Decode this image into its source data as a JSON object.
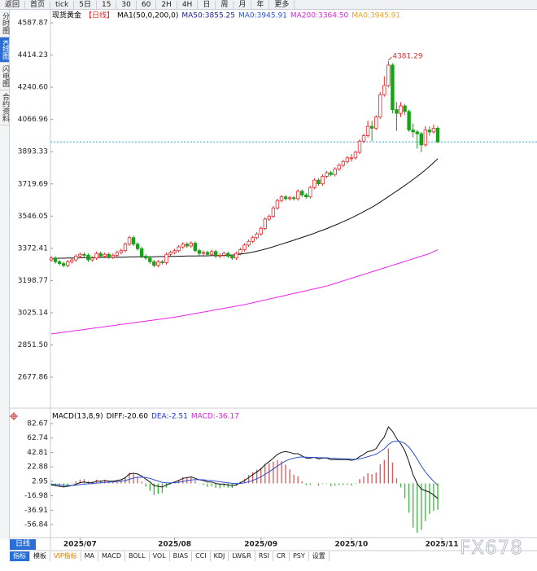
{
  "toolbar": [
    "返回",
    "首页",
    "tick",
    "5日",
    "15",
    "30",
    "60",
    "2H",
    "4H",
    "日",
    "周",
    "月",
    "年",
    "更多"
  ],
  "sidebar": [
    "分时图",
    "K线图",
    "闪电图",
    "合约资料"
  ],
  "period": "日线",
  "tabs": [
    "指标",
    "模板",
    "VIP指标",
    "MA",
    "MACD",
    "BOLL",
    "VOL",
    "BIAS",
    "CCI",
    "KDJ",
    "LW&R",
    "RSI",
    "CR",
    "PSY",
    "设置"
  ],
  "watermark": "FX678",
  "chart_data": [
    {
      "type": "candlestick",
      "title": "现货黄金",
      "subtitle": "【日线】",
      "legend": [
        {
          "text": "MA1(50,0,200,0)",
          "color": "#000000"
        },
        {
          "text": "MA50:3855.25",
          "color": "#1f1f8f"
        },
        {
          "text": "MA0:3945.91",
          "color": "#2a55d4"
        },
        {
          "text": "MA200:3364.50",
          "color": "#e020e0"
        },
        {
          "text": "MA0:3945.91",
          "color": "#f0a020"
        }
      ],
      "up_color": "#e8262a",
      "down_color": "#16a316",
      "last_line_color": "#2aa8e0",
      "xlim": [
        0,
        94
      ],
      "xticks": [
        {
          "value": 7,
          "label": "2025/07"
        },
        {
          "value": 30,
          "label": "2025/08"
        },
        {
          "value": 51,
          "label": "2025/09"
        },
        {
          "value": 73,
          "label": "2025/10"
        },
        {
          "value": 95,
          "label": "2025/11"
        }
      ],
      "ylim": [
        2515.6,
        4658.2
      ],
      "yticks": [
        4587.87,
        4414.23,
        {
          "value": 4240.6,
          "label": "4240.60"
        },
        4066.96,
        3893.33,
        3719.69,
        3546.05,
        3372.41,
        3198.77,
        3025.14,
        {
          "value": 2851.5,
          "label": "2851.50"
        },
        2677.86
      ],
      "open": [
        3310,
        3320,
        3300,
        3290,
        3280,
        3300,
        3310,
        3330,
        3340,
        3335,
        3310,
        3320,
        3345,
        3330,
        3340,
        3325,
        3335,
        3350,
        3360,
        3395,
        3430,
        3395,
        3370,
        3330,
        3320,
        3300,
        3280,
        3300,
        3295,
        3340,
        3350,
        3360,
        3380,
        3395,
        3385,
        3400,
        3360,
        3345,
        3350,
        3340,
        3355,
        3330,
        3335,
        3345,
        3330,
        3320,
        3345,
        3365,
        3390,
        3410,
        3430,
        3450,
        3480,
        3530,
        3545,
        3590,
        3630,
        3650,
        3640,
        3645,
        3640,
        3680,
        3660,
        3650,
        3700,
        3740,
        3720,
        3760,
        3780,
        3770,
        3800,
        3820,
        3840,
        3860,
        3860,
        3890,
        3950,
        3980,
        4030,
        4020,
        4080,
        4200,
        4250,
        4360,
        4120,
        4100,
        4140,
        4110,
        4010,
        4000,
        3990,
        3930,
        4010,
        4000,
        4020
      ],
      "high": [
        3330,
        3330,
        3310,
        3300,
        3310,
        3320,
        3340,
        3350,
        3350,
        3345,
        3330,
        3355,
        3355,
        3350,
        3350,
        3345,
        3360,
        3370,
        3405,
        3440,
        3440,
        3405,
        3380,
        3340,
        3330,
        3310,
        3310,
        3310,
        3350,
        3360,
        3370,
        3390,
        3405,
        3405,
        3410,
        3410,
        3370,
        3360,
        3360,
        3365,
        3365,
        3345,
        3355,
        3355,
        3340,
        3355,
        3375,
        3400,
        3420,
        3440,
        3460,
        3490,
        3540,
        3555,
        3600,
        3640,
        3660,
        3660,
        3655,
        3655,
        3690,
        3690,
        3670,
        3710,
        3750,
        3750,
        3770,
        3790,
        3790,
        3810,
        3830,
        3850,
        3870,
        3880,
        3900,
        3960,
        3990,
        4060,
        4060,
        4090,
        4215,
        4300,
        4381.29,
        4370,
        4160,
        4160,
        4150,
        4120,
        4045,
        4010,
        4000,
        4030,
        4030,
        4040,
        4030
      ],
      "low": [
        3300,
        3290,
        3280,
        3270,
        3270,
        3290,
        3300,
        3320,
        3325,
        3300,
        3300,
        3310,
        3320,
        3320,
        3315,
        3315,
        3325,
        3340,
        3350,
        3385,
        3385,
        3360,
        3320,
        3310,
        3290,
        3270,
        3270,
        3285,
        3285,
        3330,
        3340,
        3350,
        3370,
        3375,
        3375,
        3350,
        3335,
        3335,
        3330,
        3330,
        3320,
        3320,
        3325,
        3320,
        3310,
        3310,
        3335,
        3355,
        3380,
        3400,
        3420,
        3440,
        3470,
        3520,
        3535,
        3580,
        3620,
        3630,
        3630,
        3630,
        3630,
        3650,
        3640,
        3640,
        3690,
        3710,
        3710,
        3750,
        3760,
        3760,
        3790,
        3810,
        3830,
        3840,
        3850,
        3880,
        3940,
        3970,
        3950,
        4010,
        4070,
        4190,
        4240,
        4100,
        4005,
        4080,
        4090,
        4000,
        3970,
        3910,
        3890,
        3920,
        3980,
        3990,
        3940
      ],
      "close": [
        3320,
        3300,
        3290,
        3280,
        3300,
        3310,
        3330,
        3340,
        3335,
        3310,
        3320,
        3345,
        3330,
        3340,
        3325,
        3335,
        3350,
        3360,
        3395,
        3430,
        3395,
        3370,
        3330,
        3320,
        3300,
        3280,
        3300,
        3295,
        3340,
        3350,
        3360,
        3380,
        3395,
        3385,
        3400,
        3360,
        3345,
        3350,
        3340,
        3355,
        3330,
        3335,
        3345,
        3330,
        3320,
        3345,
        3365,
        3390,
        3410,
        3430,
        3450,
        3480,
        3530,
        3545,
        3590,
        3630,
        3650,
        3640,
        3645,
        3640,
        3680,
        3660,
        3650,
        3700,
        3740,
        3720,
        3760,
        3780,
        3770,
        3800,
        3820,
        3840,
        3860,
        3860,
        3890,
        3950,
        3980,
        4030,
        4020,
        4080,
        4200,
        4250,
        4360,
        4120,
        4100,
        4140,
        4110,
        4010,
        4000,
        3990,
        3930,
        4010,
        4000,
        4020,
        3945.91
      ],
      "series": [
        {
          "color": "#111111",
          "values": [
            3318,
            3318,
            3319,
            3319,
            3320,
            3320,
            3321,
            3321,
            3322,
            3322,
            3322,
            3323,
            3323,
            3323,
            3324,
            3324,
            3324,
            3325,
            3325,
            3326,
            3326,
            3327,
            3327,
            3327,
            3327,
            3327,
            3328,
            3328,
            3328,
            3329,
            3329,
            3330,
            3330,
            3331,
            3331,
            3331,
            3332,
            3332,
            3332,
            3333,
            3333,
            3333,
            3334,
            3335,
            3336,
            3338,
            3341,
            3344,
            3348,
            3352,
            3357,
            3362,
            3368,
            3374,
            3381,
            3388,
            3395,
            3402,
            3409,
            3416,
            3424,
            3431,
            3438,
            3446,
            3454,
            3462,
            3470,
            3479,
            3488,
            3497,
            3506,
            3516,
            3526,
            3536,
            3547,
            3558,
            3570,
            3582,
            3594,
            3607,
            3621,
            3636,
            3651,
            3666,
            3681,
            3696,
            3711,
            3727,
            3743,
            3760,
            3777,
            3795,
            3814,
            3834,
            3855.25
          ]
        },
        {
          "color": "#ee22ee",
          "values": [
            2911,
            2914,
            2917,
            2920,
            2923,
            2926,
            2929,
            2932,
            2935,
            2938,
            2941,
            2944,
            2947,
            2950,
            2953,
            2956,
            2959,
            2962,
            2965,
            2968,
            2971,
            2974,
            2977,
            2980,
            2983,
            2986,
            2989,
            2992,
            2995,
            2998,
            3001,
            3005,
            3009,
            3013,
            3017,
            3021,
            3025,
            3029,
            3033,
            3037,
            3041,
            3045,
            3049,
            3053,
            3057,
            3061,
            3065,
            3069,
            3074,
            3079,
            3084,
            3089,
            3094,
            3099,
            3104,
            3109,
            3114,
            3119,
            3124,
            3129,
            3134,
            3139,
            3144,
            3149,
            3154,
            3159,
            3164,
            3169,
            3176,
            3183,
            3190,
            3197,
            3204,
            3211,
            3218,
            3225,
            3232,
            3239,
            3246,
            3253,
            3260,
            3267,
            3274,
            3281,
            3288,
            3295,
            3302,
            3309,
            3316,
            3323,
            3330,
            3337,
            3344,
            3355,
            3364.5
          ]
        }
      ]
    },
    {
      "type": "macd",
      "title": "MACD(13,8,9)",
      "legend": [
        {
          "text": "DIFF:-20.60",
          "color": "#000000"
        },
        {
          "text": "DEA:-2.51",
          "color": "#2233cc"
        },
        {
          "text": "MACD:-36.17",
          "color": "#e020e0"
        }
      ],
      "xlim": [
        0,
        94
      ],
      "ylim": [
        -74.8,
        98.4
      ],
      "yticks": [
        82.67,
        62.74,
        42.81,
        22.88,
        2.95,
        -16.98,
        -36.91,
        -56.84
      ],
      "series": [
        {
          "color": "#111111",
          "values": [
            -2,
            -3,
            -4,
            -5,
            -4,
            -3,
            -1,
            1,
            2,
            1,
            1,
            3,
            3,
            4,
            3,
            3,
            4,
            5,
            8,
            13,
            14,
            13,
            10,
            6,
            2,
            -3,
            -4,
            -5,
            -2,
            0,
            2,
            4,
            7,
            8,
            9,
            7,
            5,
            4,
            2,
            2,
            0,
            -1,
            -1,
            -2,
            -3,
            -2,
            1,
            4,
            8,
            12,
            16,
            20,
            26,
            30,
            35,
            40,
            43,
            44,
            43,
            41,
            41,
            38,
            35,
            35,
            36,
            34,
            35,
            35,
            33,
            33,
            33,
            33,
            33,
            32,
            33,
            37,
            40,
            44,
            45,
            48,
            57,
            64,
            78,
            72,
            62,
            55,
            45,
            30,
            12,
            0,
            -8,
            -10,
            -12,
            -16,
            -20.6
          ]
        },
        {
          "color": "#2f4fd0",
          "values": [
            -1,
            -1.4,
            -1.9,
            -2.5,
            -2.8,
            -2.8,
            -2.4,
            -1.7,
            -1,
            -0.6,
            -0.3,
            0.4,
            0.9,
            1.5,
            1.8,
            2,
            2.4,
            2.9,
            3.9,
            5.7,
            7.4,
            8.5,
            8.8,
            8.2,
            7,
            5,
            3.2,
            1.6,
            0.9,
            0.7,
            1,
            1.6,
            2.7,
            3.8,
            4.8,
            5.2,
            5.2,
            5,
            4.4,
            3.9,
            3.1,
            2.3,
            1.6,
            0.9,
            0.1,
            -0.3,
            0,
            0.8,
            2.2,
            4.2,
            6.5,
            9.2,
            12.6,
            16.1,
            19.9,
            23.9,
            27.7,
            31,
            33.4,
            34.9,
            36.1,
            36.5,
            36.2,
            36,
            36,
            35.6,
            35.5,
            35.4,
            34.9,
            34.5,
            34.2,
            34,
            33.8,
            33.4,
            33.3,
            34,
            35.2,
            37,
            38.6,
            40.5,
            43.8,
            47.8,
            53.9,
            57.5,
            58.4,
            57.7,
            55.2,
            50.2,
            42.5,
            34,
            24,
            16,
            9,
            3,
            -2.51
          ]
        }
      ],
      "histogram": {
        "up_color": "#e05555",
        "down_color": "#33bb33",
        "values": [
          -2,
          -3.2,
          -4.2,
          -5,
          -2.4,
          -0.4,
          2.8,
          5.4,
          6,
          3.2,
          2.6,
          5.2,
          4.2,
          5,
          2.4,
          2,
          3.2,
          4.2,
          8.2,
          14.6,
          13.2,
          9,
          2.4,
          -4.4,
          -10,
          -16,
          -14.4,
          -13.2,
          -5.8,
          -1.4,
          2,
          4.8,
          8.6,
          8.4,
          8.4,
          3.6,
          -0.4,
          -2,
          -4.8,
          -3.8,
          -6.2,
          -6.6,
          -5.2,
          -5.8,
          -6.2,
          -3.4,
          2,
          6.4,
          11.6,
          15.6,
          19,
          21.6,
          26.8,
          27.8,
          30.2,
          32.2,
          30.6,
          26,
          19.2,
          12.2,
          9.8,
          3,
          -2.4,
          -2,
          0,
          -3.2,
          -1,
          -0.8,
          -3.8,
          -3,
          -2.4,
          -2,
          -1.6,
          -2.8,
          -0.6,
          6,
          9.6,
          14,
          12.8,
          15,
          26.4,
          32.4,
          48.2,
          29,
          7.2,
          -5.4,
          -20.4,
          -40.4,
          -61,
          -68,
          -64,
          -52,
          -42,
          -38,
          -36.17
        ]
      }
    }
  ]
}
